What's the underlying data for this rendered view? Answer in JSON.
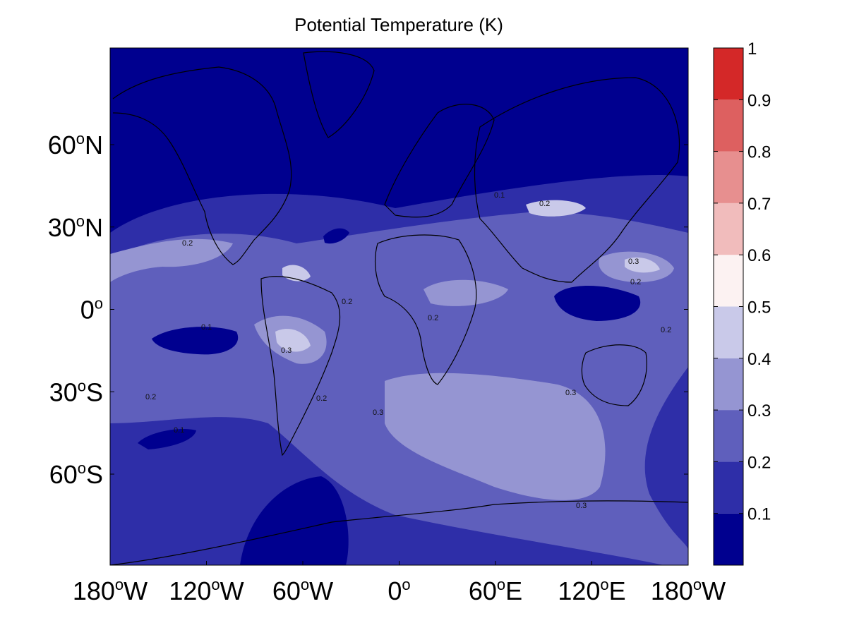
{
  "title": "Potential Temperature (K)",
  "map": {
    "lat_ticks": [
      {
        "value": 60,
        "deg": "60",
        "sup": "o",
        "hemi": "N"
      },
      {
        "value": 30,
        "deg": "30",
        "sup": "o",
        "hemi": "N"
      },
      {
        "value": 0,
        "deg": "0",
        "sup": "o",
        "hemi": ""
      },
      {
        "value": -30,
        "deg": "30",
        "sup": "o",
        "hemi": "S"
      },
      {
        "value": -60,
        "deg": "60",
        "sup": "o",
        "hemi": "S"
      }
    ],
    "lon_ticks": [
      {
        "value": -180,
        "deg": "180",
        "sup": "o",
        "hemi": "W"
      },
      {
        "value": -120,
        "deg": "120",
        "sup": "o",
        "hemi": "W"
      },
      {
        "value": -60,
        "deg": "60",
        "sup": "o",
        "hemi": "W"
      },
      {
        "value": 0,
        "deg": "0",
        "sup": "o",
        "hemi": ""
      },
      {
        "value": 60,
        "deg": "60",
        "sup": "o",
        "hemi": "E"
      },
      {
        "value": 120,
        "deg": "120",
        "sup": "o",
        "hemi": "E"
      },
      {
        "value": 180,
        "deg": "180",
        "sup": "o",
        "hemi": "W"
      }
    ],
    "contour_labels": [
      "0.1",
      "0.2",
      "0.3"
    ]
  },
  "colorbar": {
    "levels": [
      0,
      0.1,
      0.2,
      0.3,
      0.4,
      0.5,
      0.6,
      0.7,
      0.8,
      0.9,
      1
    ],
    "tick_labels": [
      "0.1",
      "0.2",
      "0.3",
      "0.4",
      "0.5",
      "0.6",
      "0.7",
      "0.8",
      "0.9",
      "1"
    ],
    "colors": [
      "#00008f",
      "#2e2ea8",
      "#5f5fbc",
      "#9595d2",
      "#c9c9e9",
      "#fcf2f2",
      "#f1bcbc",
      "#e78f8f",
      "#dd6060",
      "#d42828"
    ]
  }
}
